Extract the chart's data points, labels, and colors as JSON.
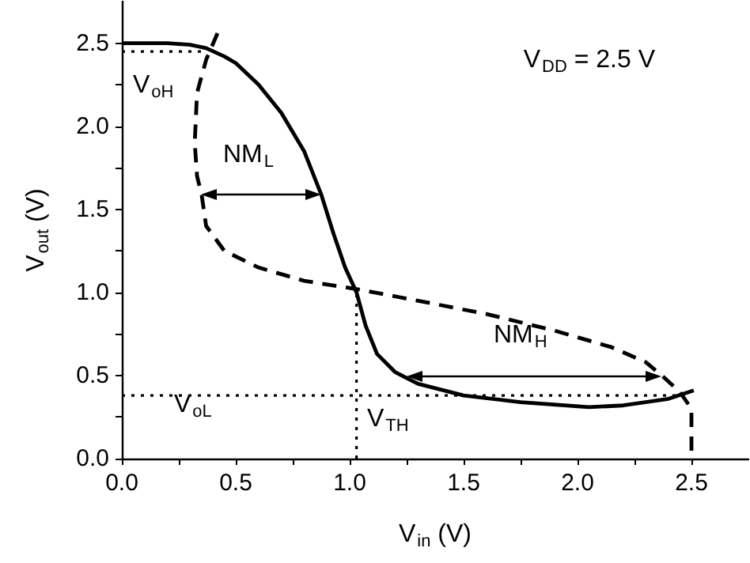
{
  "chart_data": {
    "type": "line",
    "xlabel": "V$_{in}$ (V)",
    "ylabel": "V$_{out}$ (V)",
    "xlim": [
      0,
      2.75
    ],
    "ylim": [
      0,
      2.75
    ],
    "xticks": [
      {
        "value": 0,
        "label": "0.0"
      },
      {
        "value": 0.25,
        "label": null
      },
      {
        "value": 0.5,
        "label": "0.5"
      },
      {
        "value": 0.75,
        "label": null
      },
      {
        "value": 1,
        "label": "1.0"
      },
      {
        "value": 1.25,
        "label": null
      },
      {
        "value": 1.5,
        "label": "1.5"
      },
      {
        "value": 1.75,
        "label": null
      },
      {
        "value": 2,
        "label": "2.0"
      },
      {
        "value": 2.25,
        "label": null
      },
      {
        "value": 2.5,
        "label": "2.5"
      }
    ],
    "yticks": [
      {
        "value": 0,
        "label": "0.0"
      },
      {
        "value": 0.25,
        "label": null
      },
      {
        "value": 0.5,
        "label": "0.5"
      },
      {
        "value": 0.75,
        "label": null
      },
      {
        "value": 1,
        "label": "1.0"
      },
      {
        "value": 1.25,
        "label": null
      },
      {
        "value": 1.5,
        "label": "1.5"
      },
      {
        "value": 1.75,
        "label": null
      },
      {
        "value": 2,
        "label": "2.0"
      },
      {
        "value": 2.25,
        "label": null
      },
      {
        "value": 2.5,
        "label": "2.5"
      }
    ],
    "grid": false,
    "marker": "none",
    "series": [
      {
        "color": "#000000",
        "line_style": "solid",
        "x": [
          0,
          0.2,
          0.3,
          0.37,
          0.45,
          0.5,
          0.6,
          0.7,
          0.8,
          0.875,
          0.93,
          0.98,
          1.03,
          1.07,
          1.12,
          1.2,
          1.3,
          1.5,
          1.75,
          2.05,
          2.2,
          2.4,
          2.51
        ],
        "values": [
          2.5,
          2.5,
          2.49,
          2.47,
          2.42,
          2.38,
          2.25,
          2.08,
          1.85,
          1.59,
          1.35,
          1.15,
          1.0,
          0.8,
          0.63,
          0.52,
          0.45,
          0.38,
          0.34,
          0.31,
          0.32,
          0.36,
          0.41
        ]
      },
      {
        "color": "#000000",
        "line_style": "dashed",
        "x": [
          0.42,
          0.37,
          0.33,
          0.32,
          0.33,
          0.35,
          0.37,
          0.45,
          0.6,
          0.8,
          1.03,
          1.3,
          1.6,
          1.9,
          2.15,
          2.3,
          2.37,
          2.45,
          2.5,
          2.5
        ],
        "values": [
          2.56,
          2.4,
          2.2,
          1.9,
          1.7,
          1.59,
          1.4,
          1.25,
          1.15,
          1.07,
          1.02,
          0.95,
          0.87,
          0.77,
          0.67,
          0.58,
          0.5,
          0.4,
          0.3,
          0.0
        ]
      },
      {
        "color": "#000000",
        "line_style": "dotted",
        "x": [
          0,
          0.37
        ],
        "values": [
          2.45,
          2.45
        ]
      },
      {
        "color": "#000000",
        "line_style": "dotted",
        "x": [
          0,
          2.45
        ],
        "values": [
          0.38,
          0.38
        ]
      },
      {
        "color": "#000000",
        "line_style": "dotted",
        "x": [
          1.03,
          1.03
        ],
        "values": [
          0,
          1.0
        ]
      }
    ],
    "annotations": [
      "V$_{DD}$ = 2.5 V",
      "V$_{oH}$",
      "V$_{oL}$",
      "V$_{TH}$",
      "NM$_{L}$",
      "NM$_{H}$"
    ]
  }
}
